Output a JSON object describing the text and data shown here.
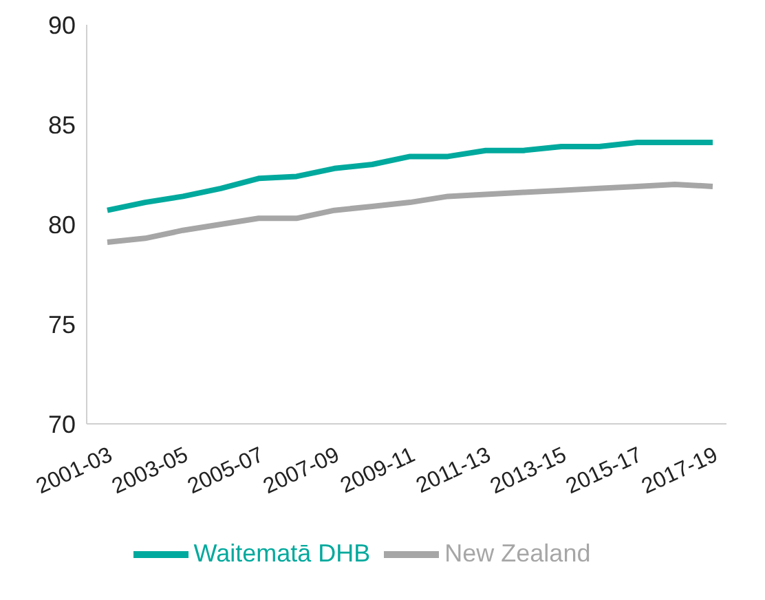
{
  "chart_data": {
    "type": "line",
    "categories": [
      "2001-03",
      null,
      "2003-05",
      null,
      "2005-07",
      null,
      "2007-09",
      null,
      "2009-11",
      null,
      "2011-13",
      null,
      "2013-15",
      null,
      "2015-17",
      null,
      "2017-19"
    ],
    "series": [
      {
        "name": "Waitematā DHB",
        "color": "#00a99d",
        "values": [
          80.7,
          81.1,
          81.4,
          81.8,
          82.3,
          82.4,
          82.8,
          83.0,
          83.4,
          83.4,
          83.7,
          83.7,
          83.9,
          83.9,
          84.1,
          84.1,
          84.1
        ]
      },
      {
        "name": "New Zealand",
        "color": "#a6a6a6",
        "values": [
          79.1,
          79.3,
          79.7,
          80.0,
          80.3,
          80.3,
          80.7,
          80.9,
          81.1,
          81.4,
          81.5,
          81.6,
          81.7,
          81.8,
          81.9,
          82.0,
          81.9
        ]
      }
    ],
    "ylim": [
      70,
      90
    ],
    "yticks": [
      70,
      75,
      80,
      85,
      90
    ],
    "grid": false,
    "legend": "bottom",
    "marker": "none",
    "line_style": "solid"
  }
}
